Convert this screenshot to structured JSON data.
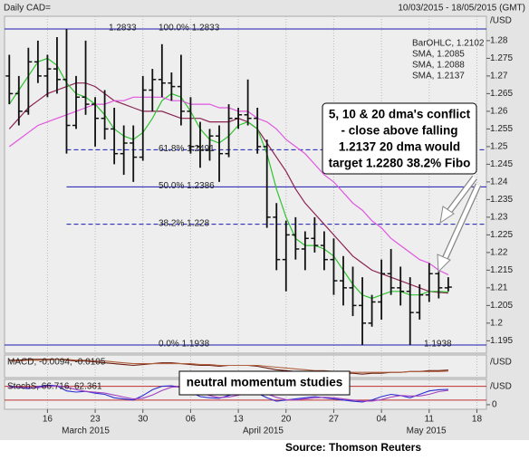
{
  "chart_data": {
    "type": "ohlc",
    "title": "Daily CAD=",
    "subtitle": "10/03/2015 - 18/05/2015 (GMT)",
    "unit_label": "/USD",
    "source": "Source: Thomson Reuters",
    "legend": "top-right",
    "grid": true,
    "xlim": [
      -0.5,
      50
    ],
    "xticks": [
      {
        "value": 4,
        "label": "16"
      },
      {
        "value": 9,
        "label": "23"
      },
      {
        "value": 14,
        "label": "30"
      },
      {
        "value": 19,
        "label": "06"
      },
      {
        "value": 24,
        "label": "13"
      },
      {
        "value": 29,
        "label": "20"
      },
      {
        "value": 34,
        "label": "27"
      },
      {
        "value": 39,
        "label": "04"
      },
      {
        "value": 44,
        "label": "11"
      },
      {
        "value": 49,
        "label": "18"
      }
    ],
    "month_labels": [
      {
        "value": 8,
        "label": "March 2015"
      },
      {
        "value": 26.6,
        "label": "April 2015"
      },
      {
        "value": 43.7,
        "label": "May 2015"
      }
    ],
    "ylim": [
      1.1915,
      1.2869
    ],
    "yticks": [
      1.195,
      1.2,
      1.205,
      1.21,
      1.215,
      1.22,
      1.225,
      1.23,
      1.235,
      1.24,
      1.245,
      1.25,
      1.255,
      1.26,
      1.265,
      1.27,
      1.275,
      1.28
    ],
    "ohlc": {
      "label": "BarOHLC, 1.2102",
      "color": "#111111",
      "open": [
        1.27,
        1.265,
        1.26,
        1.274,
        1.27,
        1.272,
        1.269,
        1.256,
        1.264,
        1.262,
        1.258,
        1.255,
        1.248,
        1.251,
        1.247,
        1.266,
        1.269,
        1.268,
        1.267,
        1.26,
        1.25,
        1.249,
        1.253,
        1.248,
        1.258,
        1.259,
        1.258,
        1.25,
        1.23,
        1.218,
        1.225,
        1.221,
        1.224,
        1.222,
        1.218,
        1.212,
        1.21,
        1.205,
        1.2,
        1.206,
        1.214,
        1.21,
        1.209,
        1.203,
        1.208,
        1.214,
        1.21
      ],
      "high": [
        1.276,
        1.27,
        1.278,
        1.28,
        1.276,
        1.281,
        1.2833,
        1.27,
        1.28,
        1.264,
        1.266,
        1.261,
        1.256,
        1.256,
        1.27,
        1.272,
        1.279,
        1.271,
        1.276,
        1.264,
        1.257,
        1.255,
        1.256,
        1.262,
        1.261,
        1.269,
        1.261,
        1.252,
        1.234,
        1.229,
        1.23,
        1.226,
        1.23,
        1.226,
        1.224,
        1.219,
        1.216,
        1.213,
        1.208,
        1.218,
        1.221,
        1.216,
        1.213,
        1.211,
        1.217,
        1.216,
        1.213
      ],
      "low": [
        1.262,
        1.256,
        1.259,
        1.268,
        1.264,
        1.265,
        1.248,
        1.255,
        1.259,
        1.25,
        1.252,
        1.245,
        1.242,
        1.24,
        1.246,
        1.26,
        1.264,
        1.263,
        1.256,
        1.248,
        1.244,
        1.246,
        1.24,
        1.247,
        1.255,
        1.256,
        1.248,
        1.227,
        1.215,
        1.209,
        1.218,
        1.215,
        1.22,
        1.215,
        1.208,
        1.205,
        1.202,
        1.1938,
        1.199,
        1.201,
        1.208,
        1.205,
        1.1938,
        1.201,
        1.206,
        1.207,
        1.209
      ],
      "close": [
        1.265,
        1.26,
        1.274,
        1.27,
        1.272,
        1.269,
        1.256,
        1.264,
        1.262,
        1.258,
        1.255,
        1.248,
        1.251,
        1.247,
        1.266,
        1.269,
        1.268,
        1.267,
        1.26,
        1.25,
        1.249,
        1.253,
        1.248,
        1.258,
        1.259,
        1.258,
        1.25,
        1.23,
        1.218,
        1.225,
        1.221,
        1.224,
        1.222,
        1.218,
        1.212,
        1.21,
        1.205,
        1.2,
        1.206,
        1.214,
        1.21,
        1.209,
        1.203,
        1.208,
        1.214,
        1.21,
        1.2102
      ]
    },
    "sma": [
      {
        "label": "SMA, 1.2085",
        "color": "#8b2252",
        "values": [
          1.255,
          1.258,
          1.261,
          1.263,
          1.265,
          1.266,
          1.267,
          1.268,
          1.268,
          1.267,
          1.265,
          1.263,
          1.262,
          1.261,
          1.26,
          1.26,
          1.26,
          1.259,
          1.258,
          1.258,
          1.258,
          1.257,
          1.257,
          1.257,
          1.258,
          1.257,
          1.255,
          1.251,
          1.247,
          1.243,
          1.238,
          1.234,
          1.231,
          1.228,
          1.225,
          1.222,
          1.219,
          1.217,
          1.215,
          1.214,
          1.213,
          1.212,
          1.211,
          1.21,
          1.209,
          1.2087,
          1.2085
        ]
      },
      {
        "label": "SMA, 1.2088",
        "color": "#2fc42f",
        "values": [
          1.262,
          1.266,
          1.27,
          1.274,
          1.275,
          1.273,
          1.268,
          1.265,
          1.264,
          1.262,
          1.259,
          1.255,
          1.253,
          1.252,
          1.254,
          1.258,
          1.263,
          1.265,
          1.264,
          1.26,
          1.255,
          1.252,
          1.251,
          1.253,
          1.256,
          1.257,
          1.255,
          1.248,
          1.238,
          1.23,
          1.224,
          1.222,
          1.222,
          1.221,
          1.219,
          1.215,
          1.211,
          1.208,
          1.207,
          1.208,
          1.209,
          1.209,
          1.208,
          1.208,
          1.209,
          1.209,
          1.2088
        ]
      },
      {
        "label": "SMA, 1.2137",
        "color": "#e055e0",
        "values": [
          1.25,
          1.252,
          1.254,
          1.256,
          1.257,
          1.258,
          1.259,
          1.26,
          1.261,
          1.262,
          1.262,
          1.263,
          1.263,
          1.264,
          1.264,
          1.264,
          1.264,
          1.263,
          1.263,
          1.262,
          1.262,
          1.262,
          1.261,
          1.261,
          1.26,
          1.26,
          1.258,
          1.257,
          1.255,
          1.252,
          1.25,
          1.248,
          1.245,
          1.242,
          1.24,
          1.237,
          1.234,
          1.232,
          1.229,
          1.227,
          1.224,
          1.222,
          1.22,
          1.218,
          1.217,
          1.215,
          1.2137
        ]
      }
    ],
    "fib_levels": [
      {
        "value": 1.2833,
        "label": "100.0% 1.2833",
        "style": "solid",
        "side_label": "1.2833"
      },
      {
        "value": 1.2491,
        "label": "61.8% 1.2491",
        "style": "dashed",
        "from_x": 6
      },
      {
        "value": 1.2386,
        "label": "50.0% 1.2386",
        "style": "solid",
        "from_x": 6
      },
      {
        "value": 1.228,
        "label": "38.2% 1.228",
        "style": "dashed",
        "from_x": 6
      },
      {
        "value": 1.1938,
        "label": "0.0% 1.1938",
        "style": "solid",
        "side_label": "1.1938"
      }
    ],
    "fib_color": "#1a1ab0",
    "annotations": [
      "5, 10 & 20 dma's conflict",
      "- close above falling",
      "1.2137 20 dma would",
      "target 1.2280 38.2% Fibo",
      "neutral momentum studies"
    ],
    "indicators": [
      {
        "label": "MACD, -0.0094, -0.0105",
        "unit_label": "/USD",
        "color": "#7a2a10",
        "ylim": [
          -0.018,
          0.008
        ],
        "series": [
          {
            "color": "#6b1e0e",
            "values": [
              0.002,
              0.002,
              0.003,
              0.003,
              0.003,
              0.003,
              0.002,
              0.001,
              0.001,
              0,
              -0.001,
              -0.002,
              -0.003,
              -0.004,
              -0.003,
              -0.002,
              -0.001,
              -0.001,
              -0.002,
              -0.003,
              -0.004,
              -0.004,
              -0.005,
              -0.004,
              -0.004,
              -0.004,
              -0.005,
              -0.007,
              -0.009,
              -0.01,
              -0.011,
              -0.011,
              -0.012,
              -0.012,
              -0.013,
              -0.013,
              -0.013,
              -0.014,
              -0.013,
              -0.013,
              -0.012,
              -0.012,
              -0.011,
              -0.011,
              -0.01,
              -0.01,
              -0.0094
            ]
          },
          {
            "color": "#b06040",
            "values": [
              0.001,
              0.001,
              0.002,
              0.002,
              0.002,
              0.003,
              0.003,
              0.002,
              0.002,
              0.001,
              0.001,
              0,
              -0.001,
              -0.002,
              -0.002,
              -0.002,
              -0.002,
              -0.002,
              -0.002,
              -0.002,
              -0.003,
              -0.003,
              -0.004,
              -0.004,
              -0.004,
              -0.004,
              -0.004,
              -0.005,
              -0.006,
              -0.007,
              -0.008,
              -0.009,
              -0.01,
              -0.01,
              -0.011,
              -0.011,
              -0.012,
              -0.012,
              -0.012,
              -0.012,
              -0.012,
              -0.012,
              -0.011,
              -0.011,
              -0.011,
              -0.011,
              -0.0105
            ]
          }
        ]
      },
      {
        "label": "StochS, 66.716, 62.361",
        "unit_label": "/USD",
        "color": "#3030a0",
        "ylim": [
          -20,
          110
        ],
        "yticks": [
          0
        ],
        "ref_levels": [
          20,
          80
        ],
        "series": [
          {
            "color": "#2d2dd0",
            "values": [
              80,
              75,
              70,
              78,
              85,
              82,
              60,
              55,
              58,
              50,
              45,
              30,
              25,
              20,
              40,
              65,
              80,
              82,
              75,
              55,
              35,
              30,
              28,
              40,
              55,
              60,
              50,
              30,
              15,
              20,
              25,
              30,
              35,
              30,
              25,
              20,
              15,
              12,
              20,
              35,
              45,
              40,
              30,
              45,
              60,
              65,
              66.716
            ]
          },
          {
            "color": "#a040c0",
            "values": [
              75,
              76,
              75,
              74,
              78,
              82,
              76,
              66,
              58,
              54,
              51,
              42,
              33,
              25,
              28,
              42,
              62,
              76,
              79,
              71,
              55,
              40,
              31,
              33,
              41,
              52,
              55,
              47,
              32,
              22,
              20,
              25,
              30,
              32,
              30,
              25,
              20,
              16,
              16,
              22,
              33,
              40,
              38,
              38,
              45,
              57,
              62.361
            ]
          }
        ]
      }
    ]
  }
}
